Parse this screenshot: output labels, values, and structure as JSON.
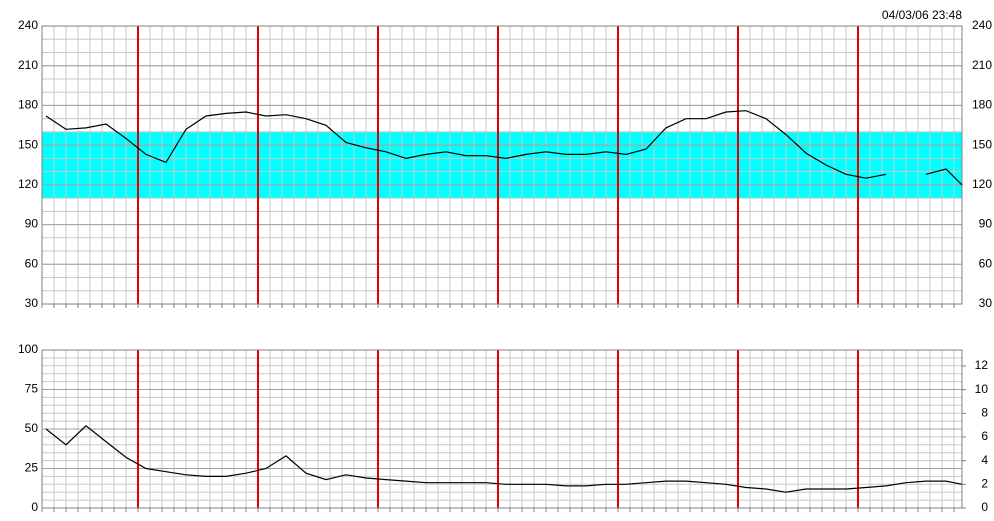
{
  "chart_data": [
    {
      "type": "line",
      "annotation": "04/03/06 23:48",
      "x": [
        4,
        24,
        44,
        64,
        84,
        104,
        124,
        144,
        164,
        184,
        204,
        224,
        244,
        264,
        284,
        304,
        324,
        344,
        364,
        384,
        404,
        424,
        444,
        464,
        484,
        504,
        524,
        544,
        564,
        584,
        604,
        624,
        644,
        664,
        684,
        704,
        724,
        744,
        764,
        784,
        804,
        824,
        844,
        864,
        884,
        904,
        920
      ],
      "values": [
        172,
        162,
        163,
        166,
        155,
        143,
        137,
        162,
        172,
        174,
        175,
        172,
        173,
        170,
        165,
        152,
        148,
        145,
        140,
        143,
        145,
        142,
        142,
        140,
        143,
        145,
        143,
        143,
        145,
        143,
        147,
        163,
        170,
        170,
        175,
        176,
        170,
        158,
        144,
        135,
        128,
        125,
        128,
        null,
        128,
        132,
        120
      ],
      "color": "#000000",
      "xlim": [
        0,
        920
      ],
      "ylim": [
        30,
        240
      ],
      "yticks": [
        30,
        60,
        90,
        120,
        150,
        180,
        210,
        240
      ],
      "mirror_ticks": true,
      "grid": true,
      "minor_divisions": 3,
      "band": [
        110,
        160
      ],
      "band_color": "#00ffff",
      "vlines": [
        96,
        216,
        336,
        456,
        576,
        696,
        816
      ],
      "vline_color": "#e00000"
    },
    {
      "type": "line",
      "x": [
        4,
        24,
        44,
        64,
        84,
        104,
        124,
        144,
        164,
        184,
        204,
        224,
        244,
        264,
        284,
        304,
        324,
        344,
        364,
        384,
        404,
        424,
        444,
        464,
        484,
        504,
        524,
        544,
        564,
        584,
        604,
        624,
        644,
        664,
        684,
        704,
        724,
        744,
        764,
        784,
        804,
        824,
        844,
        864,
        884,
        904,
        920
      ],
      "values": [
        50,
        40,
        52,
        42,
        32,
        25,
        23,
        21,
        20,
        20,
        22,
        25,
        33,
        22,
        18,
        21,
        19,
        18,
        17,
        16,
        16,
        16,
        16,
        15,
        15,
        15,
        14,
        14,
        15,
        15,
        16,
        17,
        17,
        16,
        15,
        13,
        12,
        10,
        12,
        12,
        12,
        13,
        14,
        16,
        17,
        17,
        15
      ],
      "color": "#000000",
      "xlim": [
        0,
        920
      ],
      "ylim": [
        0,
        100
      ],
      "yticks": [
        0,
        25,
        50,
        75,
        100
      ],
      "y2lim": [
        0,
        13.35
      ],
      "y2ticks": [
        0,
        2,
        4,
        6,
        8,
        10,
        12
      ],
      "grid": true,
      "minor_divisions": 5,
      "vlines": [
        96,
        216,
        336,
        456,
        576,
        696,
        816
      ],
      "vline_color": "#e00000"
    }
  ]
}
